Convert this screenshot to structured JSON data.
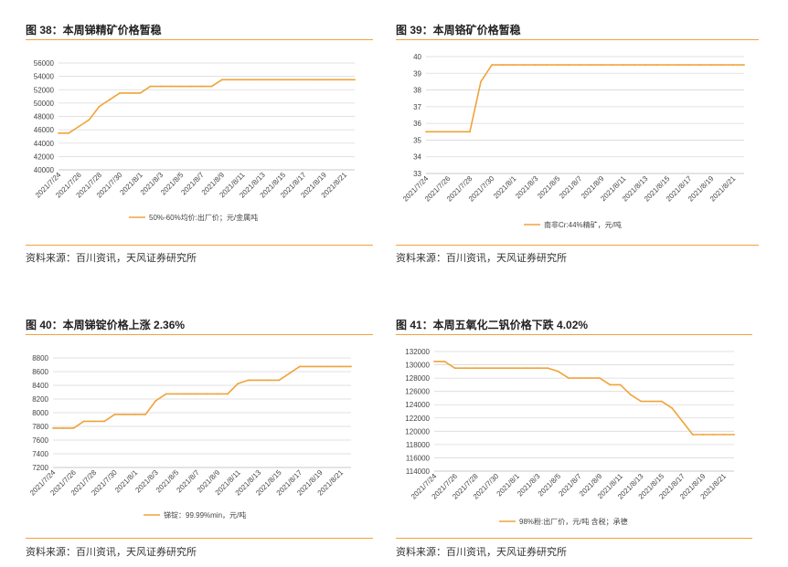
{
  "charts": [
    {
      "title": "图 38：本周锑精矿价格暂稳",
      "source": "资料来源：百川资讯，天风证券研究所",
      "chart_data": {
        "type": "line",
        "x": [
          "2021/7/24",
          "2021/7/25",
          "2021/7/26",
          "2021/7/27",
          "2021/7/28",
          "2021/7/29",
          "2021/7/30",
          "2021/7/31",
          "2021/8/1",
          "2021/8/2",
          "2021/8/3",
          "2021/8/4",
          "2021/8/5",
          "2021/8/6",
          "2021/8/7",
          "2021/8/8",
          "2021/8/9",
          "2021/8/10",
          "2021/8/11",
          "2021/8/12",
          "2021/8/13",
          "2021/8/14",
          "2021/8/15",
          "2021/8/16",
          "2021/8/17",
          "2021/8/18",
          "2021/8/19",
          "2021/8/20",
          "2021/8/21",
          "2021/8/22"
        ],
        "xticks": [
          "2021/7/24",
          "2021/7/26",
          "2021/7/28",
          "2021/7/30",
          "2021/8/1",
          "2021/8/3",
          "2021/8/5",
          "2021/8/7",
          "2021/8/9",
          "2021/8/11",
          "2021/8/13",
          "2021/8/15",
          "2021/8/17",
          "2021/8/19",
          "2021/8/21"
        ],
        "yticks": [
          "40000",
          "42000",
          "44000",
          "46000",
          "48000",
          "50000",
          "52000",
          "54000",
          "56000"
        ],
        "ylim": [
          40000,
          56000
        ],
        "series": [
          {
            "name": "50%-60%均价:出厂价；元/金属吨",
            "color": "#f0a33a",
            "values": [
              45500,
              45500,
              46500,
              47500,
              49500,
              50500,
              51500,
              51500,
              51500,
              52500,
              52500,
              52500,
              52500,
              52500,
              52500,
              52500,
              53500,
              53500,
              53500,
              53500,
              53500,
              53500,
              53500,
              53500,
              53500,
              53500,
              53500,
              53500,
              53500,
              53500
            ]
          }
        ]
      }
    },
    {
      "title": "图 39：本周铬矿价格暂稳",
      "source": "资料来源：百川资讯，天风证券研究所",
      "chart_data": {
        "type": "line",
        "x": [
          "2021/7/24",
          "2021/7/25",
          "2021/7/26",
          "2021/7/27",
          "2021/7/28",
          "2021/7/29",
          "2021/7/30",
          "2021/7/31",
          "2021/8/1",
          "2021/8/2",
          "2021/8/3",
          "2021/8/4",
          "2021/8/5",
          "2021/8/6",
          "2021/8/7",
          "2021/8/8",
          "2021/8/9",
          "2021/8/10",
          "2021/8/11",
          "2021/8/12",
          "2021/8/13",
          "2021/8/14",
          "2021/8/15",
          "2021/8/16",
          "2021/8/17",
          "2021/8/18",
          "2021/8/19",
          "2021/8/20",
          "2021/8/21",
          "2021/8/22"
        ],
        "xticks": [
          "2021/7/24",
          "2021/7/26",
          "2021/7/28",
          "2021/7/30",
          "2021/8/1",
          "2021/8/3",
          "2021/8/5",
          "2021/8/7",
          "2021/8/9",
          "2021/8/11",
          "2021/8/13",
          "2021/8/15",
          "2021/8/17",
          "2021/8/19",
          "2021/8/21"
        ],
        "yticks": [
          "33",
          "34",
          "35",
          "36",
          "37",
          "38",
          "39",
          "40"
        ],
        "ylim": [
          33,
          40
        ],
        "series": [
          {
            "name": "南非Cr:44%精矿，元/吨",
            "color": "#f0a33a",
            "values": [
              35.5,
              35.5,
              35.5,
              35.5,
              35.5,
              38.5,
              39.5,
              39.5,
              39.5,
              39.5,
              39.5,
              39.5,
              39.5,
              39.5,
              39.5,
              39.5,
              39.5,
              39.5,
              39.5,
              39.5,
              39.5,
              39.5,
              39.5,
              39.5,
              39.5,
              39.5,
              39.5,
              39.5,
              39.5,
              39.5
            ]
          }
        ]
      }
    },
    {
      "title": "图 40：本周锑锭价格上涨 2.36%",
      "source": "资料来源：百川资讯，天风证券研究所",
      "chart_data": {
        "type": "line",
        "x": [
          "2021/7/24",
          "2021/7/25",
          "2021/7/26",
          "2021/7/27",
          "2021/7/28",
          "2021/7/29",
          "2021/7/30",
          "2021/7/31",
          "2021/8/1",
          "2021/8/2",
          "2021/8/3",
          "2021/8/4",
          "2021/8/5",
          "2021/8/6",
          "2021/8/7",
          "2021/8/8",
          "2021/8/9",
          "2021/8/10",
          "2021/8/11",
          "2021/8/12",
          "2021/8/13",
          "2021/8/14",
          "2021/8/15",
          "2021/8/16",
          "2021/8/17",
          "2021/8/18",
          "2021/8/19",
          "2021/8/20",
          "2021/8/21",
          "2021/8/22"
        ],
        "xticks": [
          "2021/7/24",
          "2021/7/26",
          "2021/7/28",
          "2021/7/30",
          "2021/8/1",
          "2021/8/3",
          "2021/8/5",
          "2021/8/7",
          "2021/8/9",
          "2021/8/11",
          "2021/8/13",
          "2021/8/15",
          "2021/8/17",
          "2021/8/19",
          "2021/8/21"
        ],
        "yticks": [
          "7200",
          "7400",
          "7600",
          "7800",
          "8000",
          "8200",
          "8400",
          "8600",
          "8800"
        ],
        "ylim": [
          7200,
          8800
        ],
        "series": [
          {
            "name": "锑锭：99.99%min，元/吨",
            "color": "#f0a33a",
            "values": [
              7775,
              7775,
              7775,
              7875,
              7875,
              7875,
              7975,
              7975,
              7975,
              7975,
              8175,
              8275,
              8275,
              8275,
              8275,
              8275,
              8275,
              8275,
              8425,
              8475,
              8475,
              8475,
              8475,
              8575,
              8675,
              8675,
              8675,
              8675,
              8675,
              8675
            ]
          }
        ]
      }
    },
    {
      "title": "图 41：本周五氧化二钒价格下跌 4.02%",
      "source": "资料来源：百川资讯，天风证券研究所",
      "chart_data": {
        "type": "line",
        "x": [
          "2021/7/24",
          "2021/7/25",
          "2021/7/26",
          "2021/7/27",
          "2021/7/28",
          "2021/7/29",
          "2021/7/30",
          "2021/7/31",
          "2021/8/1",
          "2021/8/2",
          "2021/8/3",
          "2021/8/4",
          "2021/8/5",
          "2021/8/6",
          "2021/8/7",
          "2021/8/8",
          "2021/8/9",
          "2021/8/10",
          "2021/8/11",
          "2021/8/12",
          "2021/8/13",
          "2021/8/14",
          "2021/8/15",
          "2021/8/16",
          "2021/8/17",
          "2021/8/18",
          "2021/8/19",
          "2021/8/20",
          "2021/8/21",
          "2021/8/22"
        ],
        "xticks": [
          "2021/7/24",
          "2021/7/26",
          "2021/7/28",
          "2021/7/30",
          "2021/8/1",
          "2021/8/3",
          "2021/8/5",
          "2021/8/7",
          "2021/8/9",
          "2021/8/11",
          "2021/8/13",
          "2021/8/15",
          "2021/8/17",
          "2021/8/19",
          "2021/8/21"
        ],
        "yticks": [
          "114000",
          "116000",
          "118000",
          "120000",
          "122000",
          "124000",
          "126000",
          "128000",
          "130000",
          "132000"
        ],
        "ylim": [
          114000,
          132000
        ],
        "series": [
          {
            "name": "98%粉:出厂价，元/吨 含税；承德",
            "color": "#f0a33a",
            "values": [
              130500,
              130500,
              129500,
              129500,
              129500,
              129500,
              129500,
              129500,
              129500,
              129500,
              129500,
              129500,
              129000,
              128000,
              128000,
              128000,
              128000,
              127000,
              127000,
              125500,
              124500,
              124500,
              124500,
              123500,
              121500,
              119500,
              119500,
              119500,
              119500,
              119500
            ]
          }
        ]
      }
    }
  ]
}
